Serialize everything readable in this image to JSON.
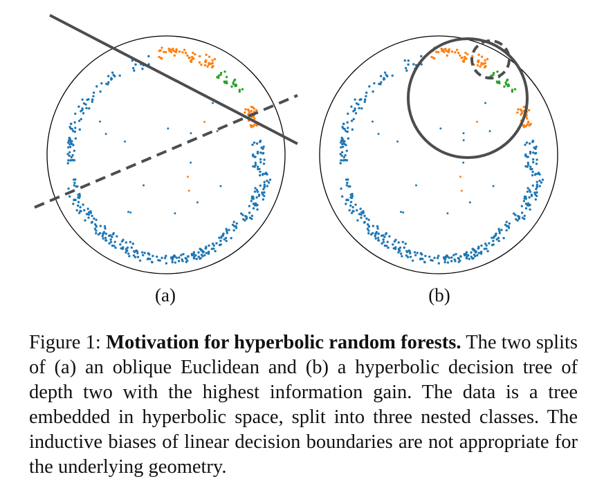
{
  "panels": [
    {
      "label": "(a)",
      "split_type": "oblique-euclidean",
      "boundaries": [
        "solid-line",
        "dashed-line"
      ]
    },
    {
      "label": "(b)",
      "split_type": "hyperbolic",
      "boundaries": [
        "solid-circle",
        "dashed-circle"
      ]
    }
  ],
  "classes": [
    {
      "name": "class-1",
      "color": "#1f77b4"
    },
    {
      "name": "class-2",
      "color": "#ff7f0e"
    },
    {
      "name": "class-3",
      "color": "#2ca02c"
    }
  ],
  "caption": {
    "prefix": "Figure 1: ",
    "title": "Motivation for hyperbolic random forests.",
    "body": " The two splits of (a) an oblique Euclidean and (b) a hyperbolic decision tree of depth two with the highest information gain. The data is a tree embedded in hyperbolic space, split into three nested classes. The inductive biases of linear decision boundaries are not appropriate for the underlying geometry."
  }
}
